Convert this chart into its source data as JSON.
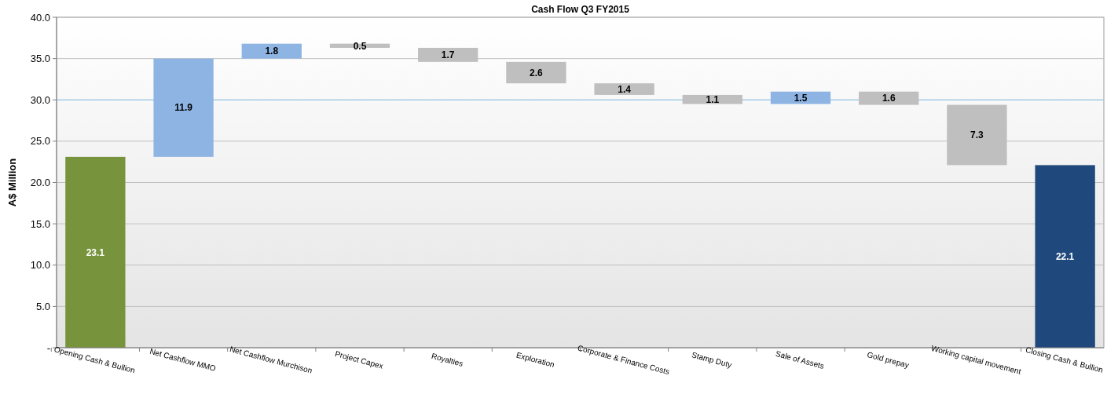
{
  "chart_data": {
    "type": "bar",
    "title": "Cash Flow Q3 FY2015",
    "ylabel": "A$ Million",
    "categories": [
      "Opening Cash & Bullion",
      "Net Cashflow MMO",
      "Net Cashflow Murchison",
      "Project Capex",
      "Royalties",
      "Exploration",
      "Corporate & Finance Costs",
      "Stamp Duty",
      "Sale of Assets",
      "Gold prepay",
      "Working capital movement",
      "Closing Cash & Bullion"
    ],
    "values": [
      23.1,
      11.9,
      1.8,
      0.5,
      1.7,
      2.6,
      1.4,
      1.1,
      1.5,
      1.6,
      7.3,
      22.1
    ],
    "base": [
      0,
      23.1,
      35.0,
      36.3,
      34.6,
      32.0,
      30.6,
      29.5,
      29.5,
      29.4,
      22.1,
      0
    ],
    "colors": [
      "#77933c",
      "#8eb4e3",
      "#8eb4e3",
      "#bfbfbf",
      "#bfbfbf",
      "#bfbfbf",
      "#bfbfbf",
      "#bfbfbf",
      "#8eb4e3",
      "#bfbfbf",
      "#bfbfbf",
      "#1f497d"
    ],
    "ylim": [
      0,
      40
    ],
    "yticks": [
      {
        "value": 0,
        "label": "-"
      },
      {
        "value": 5,
        "label": "5.0"
      },
      {
        "value": 10,
        "label": "10.0"
      },
      {
        "value": 15,
        "label": "15.0"
      },
      {
        "value": 20,
        "label": "20.0"
      },
      {
        "value": 25,
        "label": "25.0"
      },
      {
        "value": 30,
        "label": "30.0"
      },
      {
        "value": 35,
        "label": "35.0"
      },
      {
        "value": 40,
        "label": "40.0"
      }
    ],
    "grid": "y",
    "ref_lines": [
      {
        "axis": "y",
        "value": 30,
        "color": "#8ecbf0"
      }
    ],
    "data_labels": true
  }
}
